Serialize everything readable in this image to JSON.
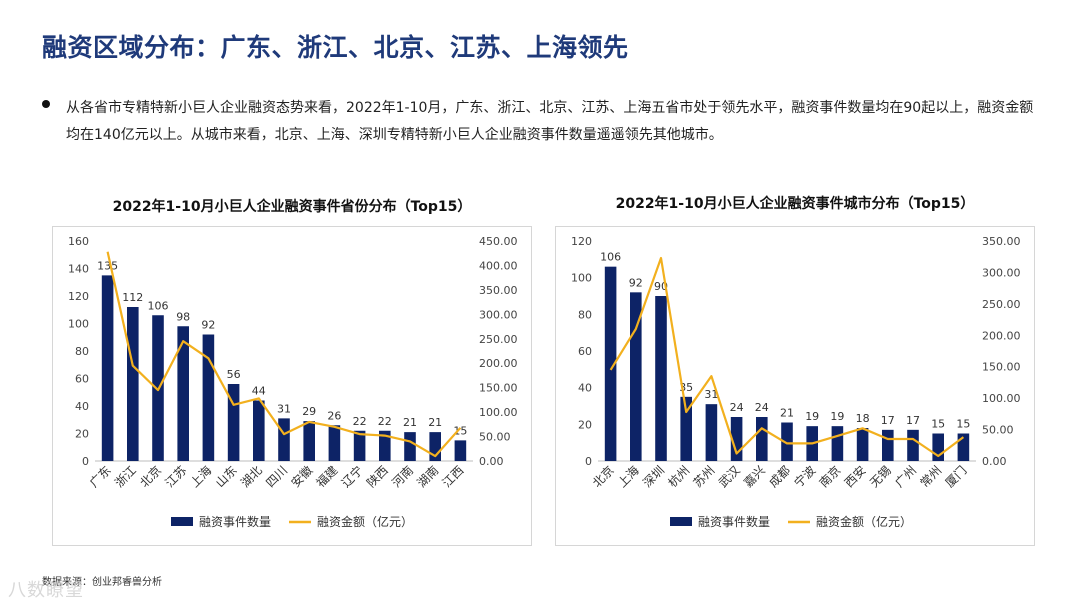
{
  "title": "融资区域分布：广东、浙江、北京、江苏、上海领先",
  "bullet": "从各省市专精特新小巨人企业融资态势来看，2022年1-10月，广东、浙江、北京、江苏、上海五省市处于领先水平，融资事件数量均在90起以上，融资金额均在140亿元以上。从城市来看，北京、上海、深圳专精特新小巨人企业融资事件数量遥遥领先其他城市。",
  "source": "数据来源：创业邦睿兽分析",
  "watermark": "八数瞭望",
  "colors": {
    "bar": "#0d2366",
    "line": "#f2b01e",
    "title": "#1f3a7a"
  },
  "chart_data": [
    {
      "type": "bar",
      "title": "2022年1-10月小巨人企业融资事件省份分布（Top15）",
      "categories": [
        "广东",
        "浙江",
        "北京",
        "江苏",
        "上海",
        "山东",
        "湖北",
        "四川",
        "安徽",
        "福建",
        "辽宁",
        "陕西",
        "河南",
        "湖南",
        "江西"
      ],
      "series": [
        {
          "name": "融资事件数量",
          "type": "bar",
          "axis": "left",
          "values": [
            135,
            112,
            106,
            98,
            92,
            56,
            44,
            31,
            29,
            26,
            22,
            22,
            21,
            21,
            15
          ]
        },
        {
          "name": "融资金额（亿元）",
          "type": "line",
          "axis": "right",
          "values": [
            428,
            195,
            145,
            245,
            210,
            115,
            128,
            55,
            80,
            70,
            55,
            52,
            40,
            10,
            68
          ]
        }
      ],
      "ylim_left": [
        0,
        160
      ],
      "yticks_left": [
        "0",
        "20",
        "40",
        "60",
        "80",
        "100",
        "120",
        "140",
        "160"
      ],
      "ylim_right": [
        0,
        450
      ],
      "yticks_right": [
        "0.00",
        "50.00",
        "100.00",
        "150.00",
        "200.00",
        "250.00",
        "300.00",
        "350.00",
        "400.00",
        "450.00"
      ],
      "legend": [
        "融资事件数量",
        "融资金额（亿元）"
      ]
    },
    {
      "type": "bar",
      "title": "2022年1-10月小巨人企业融资事件城市分布（Top15）",
      "categories": [
        "北京",
        "上海",
        "深圳",
        "杭州",
        "苏州",
        "武汉",
        "嘉兴",
        "成都",
        "宁波",
        "南京",
        "西安",
        "无锡",
        "广州",
        "常州",
        "厦门"
      ],
      "series": [
        {
          "name": "融资事件数量",
          "type": "bar",
          "axis": "left",
          "values": [
            106,
            92,
            90,
            35,
            31,
            24,
            24,
            21,
            19,
            19,
            18,
            17,
            17,
            15,
            15
          ]
        },
        {
          "name": "融资金额（亿元）",
          "type": "line",
          "axis": "right",
          "values": [
            145,
            210,
            323,
            78,
            135,
            12,
            52,
            28,
            28,
            40,
            52,
            35,
            35,
            8,
            38
          ]
        }
      ],
      "ylim_left": [
        0,
        120
      ],
      "yticks_left": [
        "0",
        "20",
        "40",
        "60",
        "80",
        "100",
        "120"
      ],
      "ylim_right": [
        0,
        350
      ],
      "yticks_right": [
        "0.00",
        "50.00",
        "100.00",
        "150.00",
        "200.00",
        "250.00",
        "300.00",
        "350.00"
      ],
      "legend": [
        "融资事件数量",
        "融资金额（亿元）"
      ]
    }
  ]
}
